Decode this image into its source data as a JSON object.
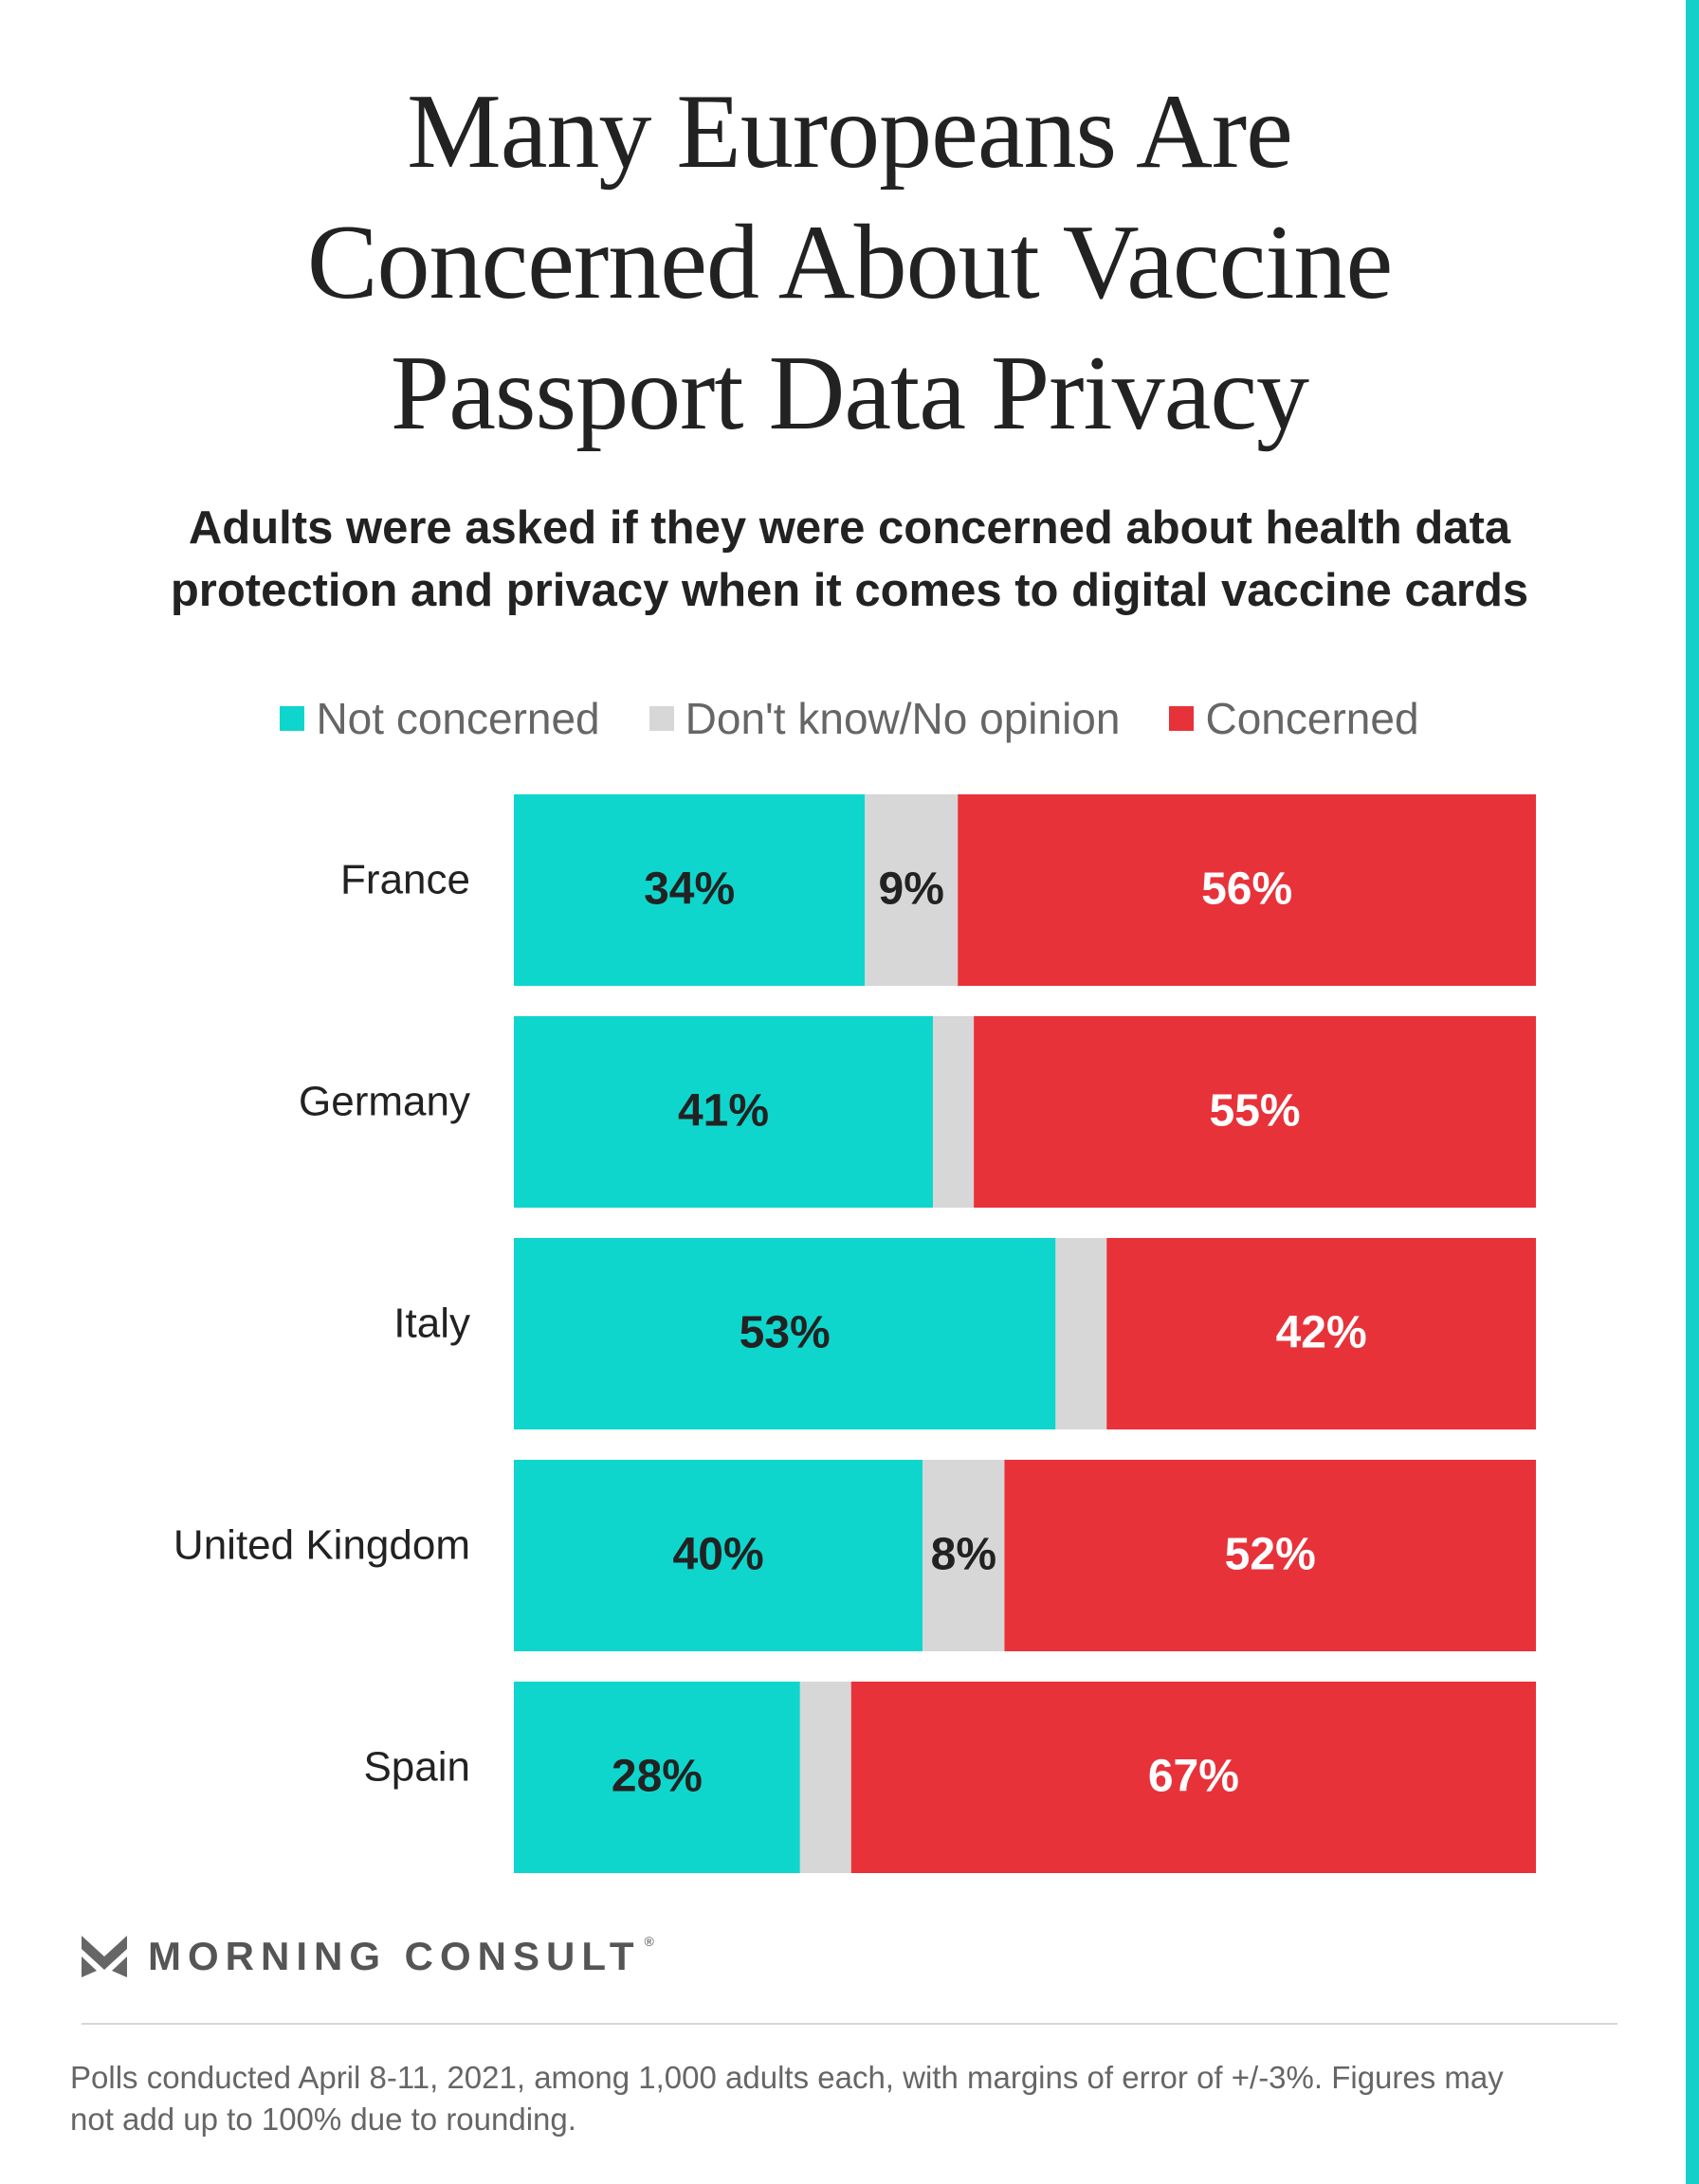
{
  "colors": {
    "not_concerned": "#0fd6cc",
    "dont_know": "#d7d7d7",
    "concerned": "#e8323a",
    "stripe": "#14d0c8"
  },
  "header": {
    "title_lines": [
      "Many Europeans Are",
      "Concerned About Vaccine",
      "Passport Data Privacy"
    ],
    "subtitle_lines": [
      "Adults were asked if they were concerned about health data",
      "protection and privacy when it comes to digital vaccine cards"
    ]
  },
  "legend": [
    {
      "label": "Not concerned",
      "color": "#0fd6cc"
    },
    {
      "label": "Don't know/No opinion",
      "color": "#d7d7d7"
    },
    {
      "label": "Concerned",
      "color": "#e8323a"
    }
  ],
  "chart_data": {
    "type": "bar",
    "orientation": "horizontal",
    "stacked": true,
    "categories": [
      "France",
      "Germany",
      "Italy",
      "United Kingdom",
      "Spain"
    ],
    "series": [
      {
        "name": "Not concerned",
        "values": [
          34,
          41,
          53,
          40,
          28
        ],
        "labels": [
          "34%",
          "41%",
          "53%",
          "40%",
          "28%"
        ],
        "label_color": "#222222"
      },
      {
        "name": "Don't know/No opinion",
        "values": [
          9,
          4,
          5,
          8,
          5
        ],
        "labels": [
          "9%",
          "",
          "",
          "8%",
          ""
        ],
        "label_color": "#222222"
      },
      {
        "name": "Concerned",
        "values": [
          56,
          55,
          42,
          52,
          67
        ],
        "labels": [
          "56%",
          "55%",
          "42%",
          "52%",
          "67%"
        ],
        "label_color": "#ffffff"
      }
    ],
    "xlim": [
      0,
      100
    ],
    "grid": false,
    "legend_position": "top"
  },
  "branding": {
    "logo_text": "MORNING CONSULT",
    "registered_mark": "®"
  },
  "footnote": "Polls conducted April 8-11, 2021, among 1,000 adults each, with margins of error of +/-3%. Figures may not add up to 100% due to rounding."
}
